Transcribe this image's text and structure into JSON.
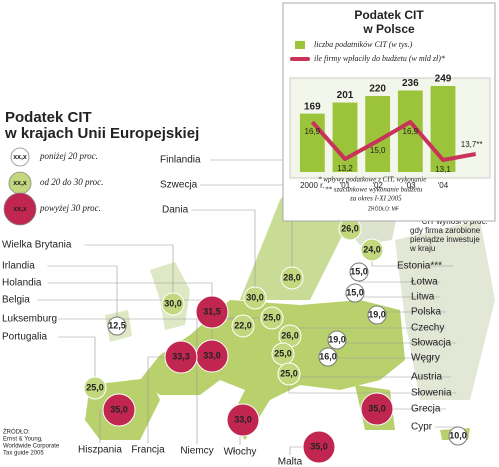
{
  "title": [
    "Podatek CIT",
    "w krajach Unii Europejskiej"
  ],
  "legend": [
    {
      "symbol": "xx,x",
      "label": "poniżej 20 proc.",
      "color": "#ffffff"
    },
    {
      "symbol": "xx,x",
      "label": "od 20 do 30 proc.",
      "color": "#c3d77e"
    },
    {
      "symbol": "xx,x",
      "label": "powyżej 30 proc.",
      "color": "#c0264f"
    }
  ],
  "countries": {
    "names": [
      "Finlandia",
      "Szwecja",
      "Dania",
      "Estonia***",
      "Łotwa",
      "Litwa",
      "Polska",
      "Wielka Brytania",
      "Irlandia",
      "Holandia",
      "Belgia",
      "Luksemburg",
      "Portugalia",
      "Czechy",
      "Słowacja",
      "Węgry",
      "Austria",
      "Słowenia",
      "Grecja",
      "Cypr",
      "Malta",
      "Hiszpania",
      "Francja",
      "Niemcy",
      "Włochy"
    ],
    "values": [
      26,
      28,
      30,
      24,
      15,
      15,
      19,
      30,
      12.5,
      31.5,
      33,
      22,
      25,
      26,
      19,
      16,
      25,
      25,
      35,
      10,
      35,
      35,
      33.3,
      25,
      33
    ],
    "value_labels": [
      "26,0",
      "28,0",
      "30,0",
      "24,0",
      "15,0",
      "15,0",
      "19,0",
      "30,0",
      "12,5",
      "31,5",
      "33,0",
      "22,0",
      "25,0",
      "26,0",
      "19,0",
      "16,0",
      "25,0",
      "25,0",
      "35,0",
      "10,0",
      "35,0",
      "35,0",
      "33,3",
      "25,0",
      "33,0"
    ],
    "colors": [
      "#c3d77e",
      "#c3d77e",
      "#c3d77e",
      "#c3d77e",
      "#ffffff",
      "#ffffff",
      "#ffffff",
      "#c3d77e",
      "#ffffff",
      "#c0264f",
      "#c0264f",
      "#c3d77e",
      "#c3d77e",
      "#c3d77e",
      "#ffffff",
      "#ffffff",
      "#c3d77e",
      "#c3d77e",
      "#c0264f",
      "#ffffff",
      "#c0264f",
      "#c0264f",
      "#c0264f",
      "#c3d77e",
      "#c0264f"
    ]
  },
  "note": [
    "*** CIT wynosi 0 proc.",
    "gdy firma zarobione",
    "pieniądze inwestuje",
    "w kraju"
  ],
  "source": [
    "ŹRÓDŁO:",
    "Ernst & Young,",
    "Worldwide Corporate",
    "Tax guide 2005"
  ],
  "chart_data": {
    "type": "bar_line",
    "title": [
      "Podatek CIT",
      "w Polsce"
    ],
    "categories": [
      "2000 r.",
      "'01",
      "'02",
      "'03",
      "'04",
      null
    ],
    "series": [
      {
        "name": "liczba podatników CIT (w tys.)",
        "color": "#9cc43a",
        "type": "bar",
        "values": [
          169,
          201,
          220,
          236,
          249,
          null
        ]
      },
      {
        "name": "ile firmy wpłaciły do budżetu (w mld zł)*",
        "color": "#c8335a",
        "type": "line",
        "values": [
          16.9,
          13.2,
          15.0,
          16.9,
          13.1,
          13.7
        ],
        "value_labels": [
          "16,9",
          "13,2",
          "15,0",
          "16,9",
          "13,1",
          "13,7**"
        ]
      }
    ],
    "footnotes": [
      "* wpływy podatkowe z CIT, wykonanie",
      "** szacunkowe wykonanie budżetu",
      "za okres I-XI 2005"
    ],
    "source": "ŹRÓDŁO: MF"
  }
}
